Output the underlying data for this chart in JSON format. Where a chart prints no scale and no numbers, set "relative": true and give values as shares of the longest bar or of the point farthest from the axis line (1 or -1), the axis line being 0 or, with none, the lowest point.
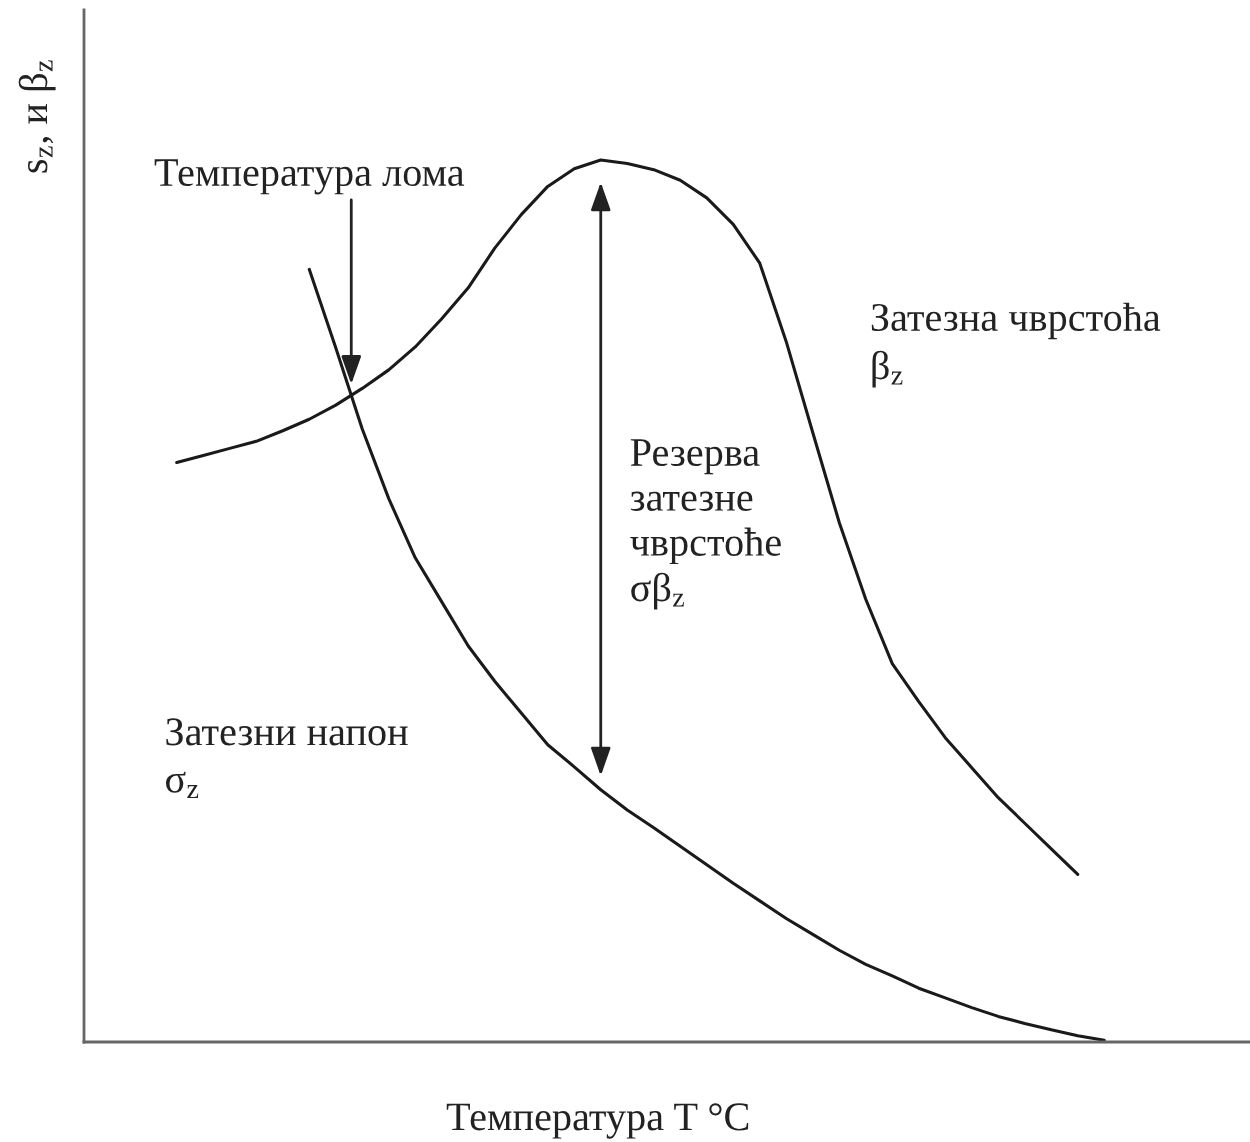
{
  "chart_data": {
    "type": "line",
    "relative": true,
    "xlabel": "Температура T °C",
    "ylabel": "s$_{z}$, и β$_{z}$",
    "categories": [
      null,
      null,
      null,
      null,
      null,
      null,
      null,
      null,
      null,
      null,
      null,
      null,
      null,
      null,
      null,
      null,
      null,
      null,
      null,
      null,
      null,
      null,
      null,
      null,
      null,
      null,
      null,
      null,
      null,
      null,
      null,
      null,
      null,
      null,
      null,
      null,
      null,
      null,
      null,
      null,
      null,
      null,
      null,
      null
    ],
    "series": [
      {
        "name": "Затезна чврстоћа\nβ$_{z}$",
        "color": "#1a1a1a",
        "values": [
          null,
          null,
          null,
          0.657,
          0.665,
          0.673,
          0.681,
          0.693,
          0.706,
          0.722,
          0.741,
          0.762,
          0.788,
          0.82,
          0.855,
          0.9,
          0.938,
          0.97,
          0.99,
          1.0,
          0.996,
          0.989,
          0.977,
          0.957,
          0.927,
          0.883,
          0.794,
          0.691,
          0.589,
          0.502,
          0.429,
          0.386,
          0.345,
          0.311,
          0.277,
          0.248,
          0.219,
          0.19,
          null,
          null,
          null,
          null,
          null,
          null
        ]
      },
      {
        "name": "Затезни напон\nσ$_{z}$",
        "color": "#1a1a1a",
        "values": [
          null,
          null,
          null,
          null,
          null,
          null,
          null,
          null,
          0.876,
          0.787,
          0.695,
          0.616,
          0.549,
          0.499,
          0.449,
          0.409,
          0.373,
          0.337,
          0.312,
          0.286,
          0.263,
          0.243,
          0.222,
          0.201,
          0.18,
          0.16,
          0.14,
          0.122,
          0.104,
          0.088,
          0.075,
          0.061,
          0.05,
          0.039,
          0.029,
          0.021,
          0.014,
          0.007,
          0.002,
          null,
          null,
          null,
          null,
          null
        ]
      }
    ],
    "annotations": [
      "Температура лома",
      "Резерва\nзатезне\nчврстоће\nσβ$_{z}$"
    ]
  }
}
